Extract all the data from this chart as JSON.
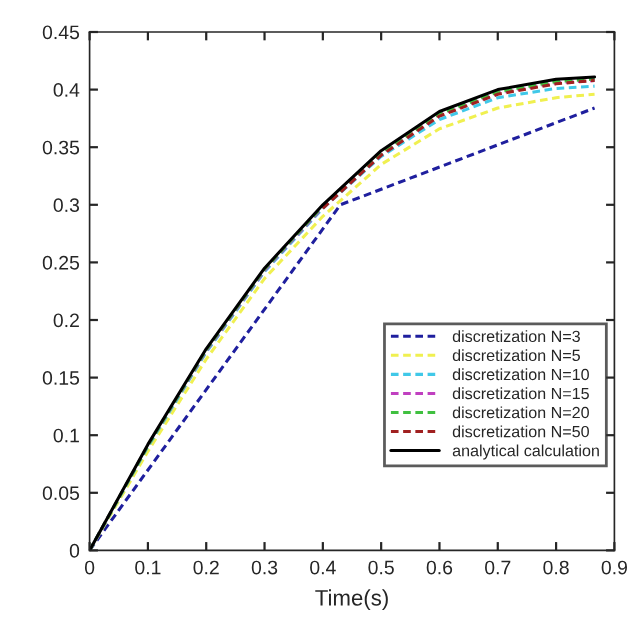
{
  "chart_data": {
    "type": "line",
    "xlabel": "Time(s)",
    "x": [
      0,
      0.1,
      0.2,
      0.3,
      0.4,
      0.5,
      0.6,
      0.7,
      0.8,
      0.866
    ],
    "series": [
      {
        "name": "discretization N=3",
        "color": "#1f1f9e",
        "line_style": "dashed",
        "x": [
          0,
          0.43,
          0.866
        ],
        "values": [
          0,
          0.3,
          0.384
        ]
      },
      {
        "name": "discretization N=5",
        "color": "#f0f050",
        "line_style": "dashed",
        "values": [
          0,
          0.086,
          0.166,
          0.236,
          0.29,
          0.335,
          0.366,
          0.384,
          0.393,
          0.396
        ]
      },
      {
        "name": "discretization N=10",
        "color": "#40c8e8",
        "line_style": "dashed",
        "values": [
          0,
          0.09,
          0.172,
          0.242,
          0.297,
          0.342,
          0.374,
          0.393,
          0.401,
          0.403
        ]
      },
      {
        "name": "discretization N=15",
        "color": "#c040c0",
        "line_style": "dashed",
        "values": [
          0,
          0.091,
          0.173,
          0.243,
          0.298,
          0.344,
          0.378,
          0.397,
          0.406,
          0.408
        ]
      },
      {
        "name": "discretization N=20",
        "color": "#40c040",
        "line_style": "dashed",
        "values": [
          0,
          0.091,
          0.174,
          0.244,
          0.299,
          0.345,
          0.379,
          0.398,
          0.407,
          0.409
        ]
      },
      {
        "name": "discretization N=50",
        "color": "#a02020",
        "line_style": "dashed",
        "values": [
          null,
          null,
          null,
          null,
          0.297,
          0.343,
          0.377,
          0.396,
          0.405,
          0.408
        ]
      },
      {
        "name": "analytical calculation",
        "color": "#000000",
        "line_style": "solid",
        "values": [
          0,
          0.092,
          0.175,
          0.245,
          0.3,
          0.347,
          0.381,
          0.4,
          0.409,
          0.411
        ]
      }
    ],
    "xlim": [
      0,
      0.9
    ],
    "xticks": [
      0,
      0.1,
      0.2,
      0.3,
      0.4,
      0.5,
      0.6,
      0.7,
      0.8,
      0.9
    ],
    "ylim": [
      0,
      0.45
    ],
    "yticks": [
      0,
      0.05,
      0.1,
      0.15,
      0.2,
      0.25,
      0.3,
      0.35,
      0.4,
      0.45
    ],
    "grid": false,
    "legend": "center right"
  }
}
